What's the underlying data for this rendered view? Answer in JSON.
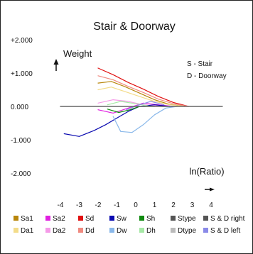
{
  "chart_data": {
    "type": "line",
    "title": "Stair & Doorway",
    "ylabel": "Weight",
    "xlabel": "ln(Ratio)",
    "xlim": [
      -4.6,
      4.6
    ],
    "ylim": [
      -2.6,
      2.6
    ],
    "x_ticks": [
      "-4",
      "-3",
      "-2",
      "-1",
      "0",
      "1",
      "2",
      "3",
      "4"
    ],
    "y_ticks": [
      "+2.000",
      "+1.000",
      "0.000",
      "-1.000",
      "-2.000"
    ],
    "key_notes": [
      "S - Stair",
      "D - Doorway"
    ],
    "legend": [
      {
        "name": "Sa1",
        "color": "#b8860b"
      },
      {
        "name": "Sa2",
        "color": "#e020e0"
      },
      {
        "name": "Sd",
        "color": "#e01010"
      },
      {
        "name": "Sw",
        "color": "#0a0ab0"
      },
      {
        "name": "Sh",
        "color": "#108a10"
      },
      {
        "name": "Stype",
        "color": "#555555"
      },
      {
        "name": "S & D right",
        "color": "#555555"
      },
      {
        "name": "Da1",
        "color": "#f3dc8a"
      },
      {
        "name": "Da2",
        "color": "#f59ae8"
      },
      {
        "name": "Dd",
        "color": "#f08a80"
      },
      {
        "name": "Dw",
        "color": "#8ab8ea"
      },
      {
        "name": "Dh",
        "color": "#a6e8a6"
      },
      {
        "name": "Dtype",
        "color": "#bbbbbb"
      },
      {
        "name": "S & D left",
        "color": "#8a8ae8"
      }
    ],
    "series": [
      {
        "name": "Sd",
        "color": "#e01010",
        "x": [
          -2.0,
          -1.2,
          -0.4,
          0.4,
          1.2,
          2.0,
          2.8
        ],
        "y": [
          1.15,
          0.95,
          0.72,
          0.52,
          0.3,
          0.12,
          0.0
        ]
      },
      {
        "name": "Dd",
        "color": "#f08a80",
        "x": [
          -2.0,
          -1.2,
          -0.4,
          0.4,
          1.2,
          2.0,
          2.8
        ],
        "y": [
          0.92,
          0.8,
          0.6,
          0.42,
          0.22,
          0.08,
          0.0
        ]
      },
      {
        "name": "Sa1",
        "color": "#b8860b",
        "x": [
          -2.0,
          -1.3,
          -0.6,
          0.2,
          1.0,
          1.8,
          2.6
        ],
        "y": [
          0.7,
          0.75,
          0.6,
          0.4,
          0.2,
          0.06,
          0.0
        ]
      },
      {
        "name": "Da1",
        "color": "#f3dc8a",
        "x": [
          -2.0,
          -1.3,
          -0.6,
          0.2,
          1.0,
          1.8,
          2.6
        ],
        "y": [
          0.5,
          0.58,
          0.45,
          0.3,
          0.15,
          0.05,
          0.0
        ]
      },
      {
        "name": "Sa2",
        "color": "#e020e0",
        "x": [
          -2.0,
          -1.2,
          -0.4,
          0.4,
          1.2,
          2.0
        ],
        "y": [
          -0.1,
          -0.2,
          -0.05,
          0.1,
          0.05,
          0.0
        ]
      },
      {
        "name": "Da2",
        "color": "#f59ae8",
        "x": [
          -2.0,
          -1.2,
          -0.4,
          0.4,
          1.2,
          2.0
        ],
        "y": [
          0.1,
          0.2,
          0.15,
          0.05,
          0.02,
          0.0
        ]
      },
      {
        "name": "Sw",
        "color": "#0a0ab0",
        "x": [
          -3.8,
          -3.0,
          -2.2,
          -1.6,
          -1.0,
          -0.4,
          0.2,
          1.0,
          1.8
        ],
        "y": [
          -0.82,
          -0.9,
          -0.72,
          -0.55,
          -0.35,
          -0.15,
          0.0,
          0.05,
          0.0
        ]
      },
      {
        "name": "Dw",
        "color": "#8ab8ea",
        "x": [
          -1.2,
          -0.8,
          -0.2,
          0.4,
          1.0,
          1.6,
          2.2
        ],
        "y": [
          -0.3,
          -0.75,
          -0.78,
          -0.55,
          -0.25,
          -0.05,
          0.0
        ]
      },
      {
        "name": "Sh",
        "color": "#108a10",
        "x": [
          -1.5,
          -0.9,
          -0.3,
          0.2,
          1.0
        ],
        "y": [
          -0.08,
          -0.18,
          -0.1,
          0.0,
          0.0
        ]
      },
      {
        "name": "Dh",
        "color": "#a6e8a6",
        "x": [
          -1.5,
          -0.8,
          0.0,
          0.8
        ],
        "y": [
          0.05,
          0.15,
          0.08,
          0.0
        ]
      },
      {
        "name": "S & D left",
        "color": "#8a8ae8",
        "x": [
          -0.5,
          0.2,
          0.8,
          1.5
        ],
        "y": [
          -0.1,
          0.05,
          0.15,
          0.05
        ]
      },
      {
        "name": "Baseline",
        "color": "#666666",
        "x": [
          -4.0,
          4.6
        ],
        "y": [
          0.0,
          0.0
        ]
      }
    ]
  }
}
